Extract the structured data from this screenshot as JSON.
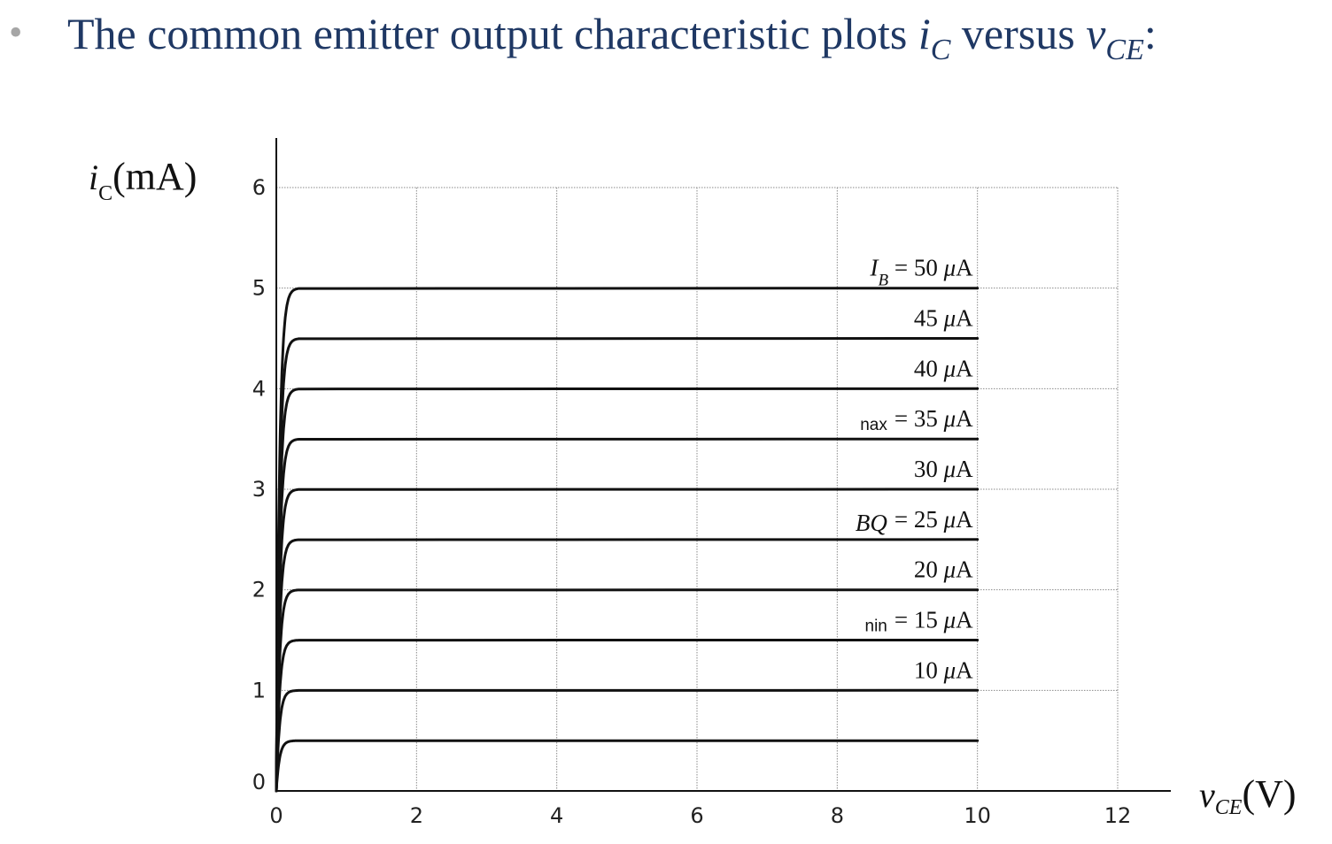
{
  "heading": {
    "bullet": "•",
    "text_before": "The common emitter output characteristic plots ",
    "var1": "i",
    "var1_sub": "C",
    "text_middle": " versus ",
    "var2": "v",
    "var2_sub": "CE",
    "text_after": ":"
  },
  "chart_data": {
    "type": "line",
    "xlabel": {
      "var": "v",
      "sub": "CE",
      "unit": "(V)"
    },
    "ylabel": {
      "var": "i",
      "sub": "C",
      "unit": "(mA)"
    },
    "xlim": [
      0,
      12
    ],
    "ylim": [
      0,
      6
    ],
    "x_ticks": [
      0,
      2,
      4,
      6,
      8,
      10,
      12
    ],
    "y_ticks": [
      0,
      1,
      2,
      3,
      4,
      5,
      6
    ],
    "grid": true,
    "x_end": 10,
    "series": [
      {
        "value": 5.0,
        "label": "I_B = 50 μA"
      },
      {
        "value": 4.5,
        "label": "45 μA"
      },
      {
        "value": 4.0,
        "label": "40 μA"
      },
      {
        "value": 3.5,
        "label": "35 μA",
        "prefix": "nax ="
      },
      {
        "value": 3.0,
        "label": "30 μA"
      },
      {
        "value": 2.5,
        "label": "25 μA",
        "prefix": "BQ ="
      },
      {
        "value": 2.0,
        "label": "20 μA"
      },
      {
        "value": 1.5,
        "label": "15 μA",
        "prefix": "nin ="
      },
      {
        "value": 1.0,
        "label": "10 μA"
      },
      {
        "value": 0.5,
        "label": ""
      }
    ],
    "curve_labels": [
      {
        "y": 5.0,
        "parts": [
          {
            "t": "I",
            "it": true
          },
          {
            "t": "B",
            "it": true,
            "sub": true
          },
          {
            "t": " = 50 "
          },
          {
            "t": "μ",
            "it": true
          },
          {
            "t": "A"
          }
        ]
      },
      {
        "y": 4.5,
        "parts": [
          {
            "t": "45 "
          },
          {
            "t": "μ",
            "it": true
          },
          {
            "t": "A"
          }
        ]
      },
      {
        "y": 4.0,
        "parts": [
          {
            "t": "40 "
          },
          {
            "t": "μ",
            "it": true
          },
          {
            "t": "A"
          }
        ]
      },
      {
        "y": 3.5,
        "prefix": "nax",
        "parts": [
          {
            "t": "= 35 "
          },
          {
            "t": "μ",
            "it": true
          },
          {
            "t": "A"
          }
        ]
      },
      {
        "y": 3.0,
        "parts": [
          {
            "t": "30 "
          },
          {
            "t": "μ",
            "it": true
          },
          {
            "t": "A"
          }
        ]
      },
      {
        "y": 2.5,
        "prefix": "BQ",
        "prefix_italic": true,
        "parts": [
          {
            "t": "= 25 "
          },
          {
            "t": "μ",
            "it": true
          },
          {
            "t": "A"
          }
        ]
      },
      {
        "y": 2.0,
        "parts": [
          {
            "t": "20 "
          },
          {
            "t": "μ",
            "it": true
          },
          {
            "t": "A"
          }
        ]
      },
      {
        "y": 1.5,
        "prefix": "nin",
        "parts": [
          {
            "t": "= 15 "
          },
          {
            "t": "μ",
            "it": true
          },
          {
            "t": "A"
          }
        ]
      },
      {
        "y": 1.0,
        "parts": [
          {
            "t": "10 "
          },
          {
            "t": "μ",
            "it": true
          },
          {
            "t": "A"
          }
        ]
      }
    ]
  }
}
